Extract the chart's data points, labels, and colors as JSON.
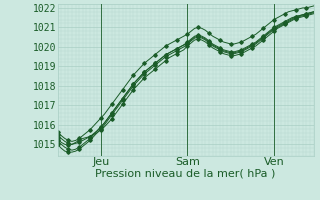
{
  "bg_color": "#cce8e0",
  "plot_bg_color": "#cce8e0",
  "grid_color_major": "#aacfc5",
  "grid_color_minor": "#b8d8d0",
  "line_color": "#1a5c28",
  "xlabel": "Pression niveau de la mer( hPa )",
  "xlabel_fontsize": 8,
  "ylabel_fontsize": 7,
  "tick_labels_day": [
    "Jeu",
    "Sam",
    "Ven"
  ],
  "ylim": [
    1014.4,
    1022.2
  ],
  "yticks": [
    1015,
    1016,
    1017,
    1018,
    1019,
    1020,
    1021,
    1022
  ],
  "n_points": 72,
  "vline_x": [
    12,
    36,
    60
  ],
  "series": [
    [
      1015.3,
      1015.1,
      1015.0,
      1014.95,
      1015.0,
      1015.1,
      1015.2,
      1015.3,
      1015.35,
      1015.4,
      1015.5,
      1015.6,
      1015.75,
      1015.9,
      1016.1,
      1016.3,
      1016.55,
      1016.8,
      1017.05,
      1017.3,
      1017.55,
      1017.8,
      1018.0,
      1018.2,
      1018.4,
      1018.55,
      1018.7,
      1018.85,
      1019.0,
      1019.15,
      1019.3,
      1019.45,
      1019.55,
      1019.65,
      1019.75,
      1019.85,
      1020.05,
      1020.2,
      1020.35,
      1020.4,
      1020.35,
      1020.25,
      1020.1,
      1019.95,
      1019.85,
      1019.75,
      1019.65,
      1019.6,
      1019.55,
      1019.55,
      1019.6,
      1019.65,
      1019.75,
      1019.85,
      1019.95,
      1020.05,
      1020.2,
      1020.35,
      1020.5,
      1020.65,
      1020.8,
      1020.95,
      1021.05,
      1021.15,
      1021.25,
      1021.35,
      1021.45,
      1021.5,
      1021.55,
      1021.6,
      1021.65,
      1021.7
    ],
    [
      1015.5,
      1015.3,
      1015.15,
      1015.05,
      1015.0,
      1015.05,
      1015.1,
      1015.2,
      1015.3,
      1015.4,
      1015.55,
      1015.7,
      1015.9,
      1016.1,
      1016.35,
      1016.6,
      1016.85,
      1017.1,
      1017.35,
      1017.6,
      1017.85,
      1018.1,
      1018.3,
      1018.5,
      1018.7,
      1018.85,
      1019.0,
      1019.15,
      1019.3,
      1019.45,
      1019.6,
      1019.7,
      1019.8,
      1019.9,
      1020.0,
      1020.1,
      1020.25,
      1020.4,
      1020.55,
      1020.6,
      1020.55,
      1020.45,
      1020.3,
      1020.15,
      1020.05,
      1019.95,
      1019.85,
      1019.8,
      1019.75,
      1019.75,
      1019.8,
      1019.85,
      1019.95,
      1020.05,
      1020.15,
      1020.25,
      1020.4,
      1020.55,
      1020.7,
      1020.85,
      1021.0,
      1021.1,
      1021.2,
      1021.3,
      1021.4,
      1021.5,
      1021.55,
      1021.6,
      1021.65,
      1021.7,
      1021.75,
      1021.8
    ],
    [
      1015.0,
      1014.8,
      1014.65,
      1014.6,
      1014.6,
      1014.65,
      1014.75,
      1014.9,
      1015.05,
      1015.2,
      1015.4,
      1015.6,
      1015.8,
      1016.0,
      1016.25,
      1016.5,
      1016.75,
      1017.0,
      1017.25,
      1017.5,
      1017.75,
      1018.0,
      1018.2,
      1018.4,
      1018.6,
      1018.75,
      1018.9,
      1019.05,
      1019.2,
      1019.35,
      1019.5,
      1019.6,
      1019.7,
      1019.8,
      1019.9,
      1020.0,
      1020.15,
      1020.3,
      1020.45,
      1020.5,
      1020.45,
      1020.35,
      1020.2,
      1020.05,
      1019.95,
      1019.85,
      1019.75,
      1019.7,
      1019.65,
      1019.65,
      1019.7,
      1019.75,
      1019.85,
      1019.95,
      1020.05,
      1020.15,
      1020.3,
      1020.45,
      1020.6,
      1020.75,
      1020.9,
      1021.0,
      1021.1,
      1021.2,
      1021.3,
      1021.4,
      1021.5,
      1021.55,
      1021.6,
      1021.65,
      1021.7,
      1021.75
    ],
    [
      1015.2,
      1015.0,
      1014.85,
      1014.75,
      1014.7,
      1014.75,
      1014.85,
      1015.0,
      1015.15,
      1015.3,
      1015.5,
      1015.7,
      1015.9,
      1016.1,
      1016.35,
      1016.6,
      1016.85,
      1017.1,
      1017.35,
      1017.6,
      1017.85,
      1018.1,
      1018.3,
      1018.5,
      1018.7,
      1018.85,
      1019.0,
      1019.15,
      1019.3,
      1019.45,
      1019.6,
      1019.7,
      1019.8,
      1019.9,
      1020.0,
      1020.1,
      1020.2,
      1020.35,
      1020.5,
      1020.55,
      1020.5,
      1020.4,
      1020.25,
      1020.1,
      1020.0,
      1019.9,
      1019.8,
      1019.75,
      1019.7,
      1019.7,
      1019.75,
      1019.8,
      1019.9,
      1020.0,
      1020.1,
      1020.2,
      1020.35,
      1020.5,
      1020.65,
      1020.8,
      1020.95,
      1021.05,
      1021.15,
      1021.25,
      1021.35,
      1021.45,
      1021.55,
      1021.6,
      1021.65,
      1021.7,
      1021.75,
      1021.8
    ],
    [
      1015.65,
      1015.45,
      1015.3,
      1015.2,
      1015.15,
      1015.2,
      1015.3,
      1015.45,
      1015.6,
      1015.75,
      1015.95,
      1016.15,
      1016.35,
      1016.55,
      1016.8,
      1017.05,
      1017.3,
      1017.55,
      1017.8,
      1018.05,
      1018.3,
      1018.55,
      1018.75,
      1018.95,
      1019.15,
      1019.3,
      1019.45,
      1019.6,
      1019.75,
      1019.9,
      1020.05,
      1020.15,
      1020.25,
      1020.35,
      1020.45,
      1020.55,
      1020.65,
      1020.8,
      1020.95,
      1021.0,
      1020.95,
      1020.85,
      1020.7,
      1020.55,
      1020.45,
      1020.35,
      1020.25,
      1020.2,
      1020.15,
      1020.15,
      1020.2,
      1020.25,
      1020.35,
      1020.45,
      1020.55,
      1020.65,
      1020.8,
      1020.95,
      1021.1,
      1021.25,
      1021.4,
      1021.5,
      1021.6,
      1021.7,
      1021.8,
      1021.85,
      1021.9,
      1021.95,
      1022.0,
      1022.0,
      1022.05,
      1022.1
    ]
  ]
}
